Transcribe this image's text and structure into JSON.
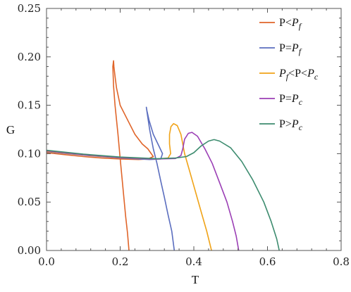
{
  "chart_data": {
    "type": "line",
    "title": "",
    "xlabel": "T",
    "ylabel": "G",
    "xlim": [
      0.0,
      0.8
    ],
    "ylim": [
      0.0,
      0.25
    ],
    "xticks": [
      "0.0",
      "0.2",
      "0.4",
      "0.6",
      "0.8"
    ],
    "yticks": [
      "0.00",
      "0.05",
      "0.10",
      "0.15",
      "0.20",
      "0.25"
    ],
    "grid": false,
    "legend_position": "top-right",
    "series": [
      {
        "name": "P<P_f",
        "legend": {
          "pre": "P<",
          "it": "P",
          "sub": "f",
          "post": ""
        },
        "color": "#e0652a",
        "points": [
          [
            0.0,
            0.101
          ],
          [
            0.05,
            0.099
          ],
          [
            0.1,
            0.097
          ],
          [
            0.15,
            0.0955
          ],
          [
            0.2,
            0.0945
          ],
          [
            0.25,
            0.094
          ],
          [
            0.275,
            0.0945
          ],
          [
            0.29,
            0.097
          ],
          [
            0.275,
            0.105
          ],
          [
            0.26,
            0.11
          ],
          [
            0.24,
            0.12
          ],
          [
            0.22,
            0.135
          ],
          [
            0.2,
            0.15
          ],
          [
            0.19,
            0.168
          ],
          [
            0.186,
            0.18
          ],
          [
            0.183,
            0.19
          ],
          [
            0.182,
            0.196
          ],
          [
            0.18,
            0.19
          ],
          [
            0.182,
            0.17
          ],
          [
            0.186,
            0.15
          ],
          [
            0.194,
            0.12
          ],
          [
            0.2,
            0.095
          ],
          [
            0.205,
            0.075
          ],
          [
            0.21,
            0.055
          ],
          [
            0.215,
            0.035
          ],
          [
            0.22,
            0.018
          ],
          [
            0.224,
            0.0
          ]
        ]
      },
      {
        "name": "P=P_f",
        "legend": {
          "pre": "P=",
          "it": "P",
          "sub": "f",
          "post": ""
        },
        "color": "#5b6ebf",
        "points": [
          [
            0.0,
            0.102
          ],
          [
            0.1,
            0.0985
          ],
          [
            0.2,
            0.0955
          ],
          [
            0.28,
            0.094
          ],
          [
            0.31,
            0.0945
          ],
          [
            0.315,
            0.1
          ],
          [
            0.305,
            0.108
          ],
          [
            0.29,
            0.12
          ],
          [
            0.278,
            0.135
          ],
          [
            0.273,
            0.144
          ],
          [
            0.271,
            0.148
          ],
          [
            0.273,
            0.143
          ],
          [
            0.28,
            0.125
          ],
          [
            0.29,
            0.105
          ],
          [
            0.3,
            0.09
          ],
          [
            0.31,
            0.072
          ],
          [
            0.32,
            0.055
          ],
          [
            0.33,
            0.037
          ],
          [
            0.34,
            0.02
          ],
          [
            0.347,
            0.0
          ]
        ]
      },
      {
        "name": "P_f<P<P_c",
        "legend": {
          "pre": "",
          "it": "P",
          "sub": "f",
          "post": "<P<",
          "it2": "P",
          "sub2": "c"
        },
        "color": "#f0a318",
        "points": [
          [
            0.0,
            0.1025
          ],
          [
            0.1,
            0.0988
          ],
          [
            0.2,
            0.0958
          ],
          [
            0.3,
            0.0945
          ],
          [
            0.33,
            0.0955
          ],
          [
            0.337,
            0.1
          ],
          [
            0.334,
            0.11
          ],
          [
            0.334,
            0.12
          ],
          [
            0.338,
            0.128
          ],
          [
            0.345,
            0.131
          ],
          [
            0.355,
            0.129
          ],
          [
            0.365,
            0.12
          ],
          [
            0.375,
            0.1
          ],
          [
            0.39,
            0.08
          ],
          [
            0.405,
            0.06
          ],
          [
            0.42,
            0.04
          ],
          [
            0.435,
            0.02
          ],
          [
            0.448,
            0.0
          ]
        ]
      },
      {
        "name": "P=P_c",
        "legend": {
          "pre": "P=",
          "it": "P",
          "sub": "c",
          "post": ""
        },
        "color": "#9b3fb5",
        "points": [
          [
            0.0,
            0.103
          ],
          [
            0.1,
            0.099
          ],
          [
            0.2,
            0.096
          ],
          [
            0.3,
            0.0945
          ],
          [
            0.35,
            0.095
          ],
          [
            0.365,
            0.098
          ],
          [
            0.37,
            0.105
          ],
          [
            0.375,
            0.115
          ],
          [
            0.385,
            0.121
          ],
          [
            0.395,
            0.122
          ],
          [
            0.41,
            0.118
          ],
          [
            0.43,
            0.105
          ],
          [
            0.45,
            0.09
          ],
          [
            0.47,
            0.07
          ],
          [
            0.49,
            0.05
          ],
          [
            0.505,
            0.03
          ],
          [
            0.515,
            0.015
          ],
          [
            0.522,
            0.0
          ]
        ]
      },
      {
        "name": "P>P_c",
        "legend": {
          "pre": "P>",
          "it": "P",
          "sub": "c",
          "post": ""
        },
        "color": "#3d8c6f",
        "points": [
          [
            0.0,
            0.1035
          ],
          [
            0.1,
            0.0995
          ],
          [
            0.2,
            0.0965
          ],
          [
            0.3,
            0.0948
          ],
          [
            0.35,
            0.0955
          ],
          [
            0.38,
            0.097
          ],
          [
            0.4,
            0.101
          ],
          [
            0.42,
            0.108
          ],
          [
            0.44,
            0.113
          ],
          [
            0.455,
            0.1145
          ],
          [
            0.47,
            0.113
          ],
          [
            0.5,
            0.106
          ],
          [
            0.53,
            0.092
          ],
          [
            0.56,
            0.073
          ],
          [
            0.59,
            0.05
          ],
          [
            0.61,
            0.03
          ],
          [
            0.625,
            0.012
          ],
          [
            0.632,
            0.0
          ]
        ]
      }
    ]
  }
}
